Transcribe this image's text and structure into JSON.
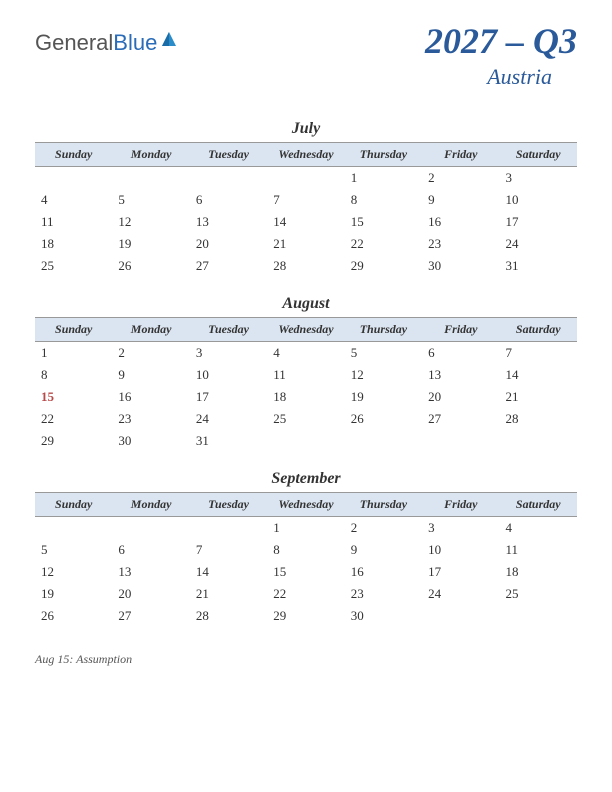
{
  "logo": {
    "general": "General",
    "blue": "Blue"
  },
  "title": {
    "main": "2027 – Q3",
    "sub": "Austria"
  },
  "colors": {
    "header_bg": "#dbe5f1",
    "title_color": "#2a5a9a",
    "holiday_color": "#b84a4a",
    "logo_icon_color": "#2a8cc8"
  },
  "weekdays": [
    "Sunday",
    "Monday",
    "Tuesday",
    "Wednesday",
    "Thursday",
    "Friday",
    "Saturday"
  ],
  "months": [
    {
      "name": "July",
      "weeks": [
        [
          "",
          "",
          "",
          "",
          "1",
          "2",
          "3"
        ],
        [
          "4",
          "5",
          "6",
          "7",
          "8",
          "9",
          "10"
        ],
        [
          "11",
          "12",
          "13",
          "14",
          "15",
          "16",
          "17"
        ],
        [
          "18",
          "19",
          "20",
          "21",
          "22",
          "23",
          "24"
        ],
        [
          "25",
          "26",
          "27",
          "28",
          "29",
          "30",
          "31"
        ]
      ],
      "holidays": []
    },
    {
      "name": "August",
      "weeks": [
        [
          "1",
          "2",
          "3",
          "4",
          "5",
          "6",
          "7"
        ],
        [
          "8",
          "9",
          "10",
          "11",
          "12",
          "13",
          "14"
        ],
        [
          "15",
          "16",
          "17",
          "18",
          "19",
          "20",
          "21"
        ],
        [
          "22",
          "23",
          "24",
          "25",
          "26",
          "27",
          "28"
        ],
        [
          "29",
          "30",
          "31",
          "",
          "",
          "",
          ""
        ]
      ],
      "holidays": [
        "15"
      ]
    },
    {
      "name": "September",
      "weeks": [
        [
          "",
          "",
          "",
          "1",
          "2",
          "3",
          "4"
        ],
        [
          "5",
          "6",
          "7",
          "8",
          "9",
          "10",
          "11"
        ],
        [
          "12",
          "13",
          "14",
          "15",
          "16",
          "17",
          "18"
        ],
        [
          "19",
          "20",
          "21",
          "22",
          "23",
          "24",
          "25"
        ],
        [
          "26",
          "27",
          "28",
          "29",
          "30",
          "",
          ""
        ]
      ],
      "holidays": []
    }
  ],
  "holiday_note": "Aug 15: Assumption"
}
